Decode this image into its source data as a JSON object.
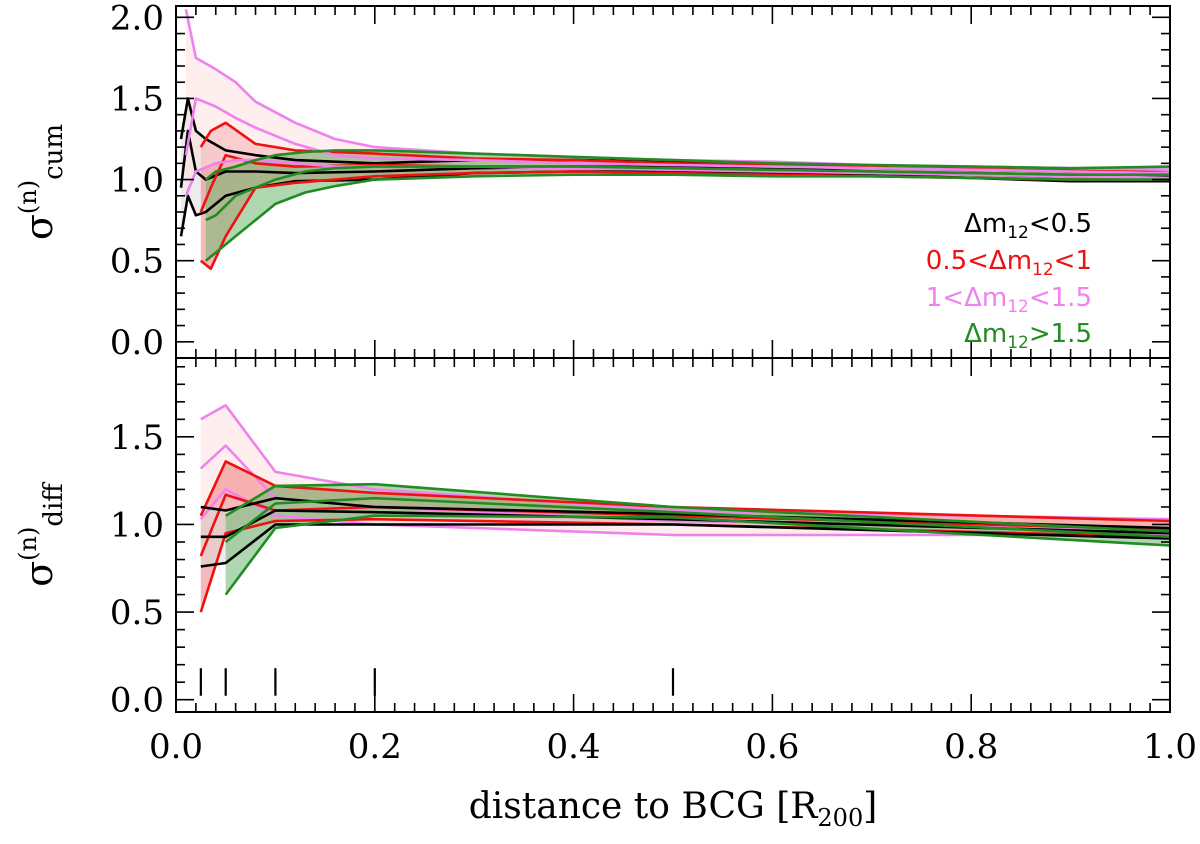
{
  "chart_data": [
    {
      "panel": "top",
      "type": "line",
      "ylabel": {
        "sigma": "σ",
        "sup": "(n)",
        "sub": "cum"
      },
      "xlim": [
        0.0,
        1.0
      ],
      "ylim": [
        -0.1,
        2.07
      ],
      "yticks": [
        0.0,
        0.5,
        1.0,
        1.5,
        2.0
      ],
      "ytick_labels": [
        "0.0",
        "0.5",
        "1.0",
        "1.5",
        "2.0"
      ],
      "legend": {
        "position": "right",
        "entries": [
          {
            "id": "dm-lt-0.5",
            "pre": "Δm",
            "sub": "12",
            "post": "<0.5",
            "color": "#000000"
          },
          {
            "id": "dm-0.5-1",
            "pre": "0.5<Δm",
            "sub": "12",
            "post": "<1",
            "color": "#ee1111"
          },
          {
            "id": "dm-1-1.5",
            "pre": "1<Δm",
            "sub": "12",
            "post": "<1.5",
            "color": "#ee82ee"
          },
          {
            "id": "dm-gt-1.5",
            "pre": "Δm",
            "sub": "12",
            "post": ">1.5",
            "color": "#228b22"
          }
        ]
      },
      "series": [
        {
          "name": "Δm12<0.5",
          "line_color": "#000000",
          "fill_color": "#dcdcdc",
          "x": [
            0.005,
            0.012,
            0.02,
            0.03,
            0.05,
            0.08,
            0.12,
            0.2,
            0.3,
            0.4,
            0.5,
            0.6,
            0.7,
            0.8,
            0.9,
            1.0
          ],
          "mid": [
            0.95,
            1.3,
            1.05,
            1.0,
            1.05,
            1.05,
            1.04,
            1.05,
            1.07,
            1.08,
            1.08,
            1.07,
            1.05,
            1.03,
            1.02,
            1.02
          ],
          "upper": [
            1.25,
            1.5,
            1.3,
            1.25,
            1.18,
            1.15,
            1.12,
            1.1,
            1.12,
            1.12,
            1.11,
            1.09,
            1.07,
            1.06,
            1.05,
            1.06
          ],
          "lower": [
            0.65,
            0.9,
            0.78,
            0.8,
            0.9,
            0.95,
            0.99,
            1.0,
            1.04,
            1.05,
            1.05,
            1.04,
            1.03,
            1.01,
            0.99,
            0.99
          ]
        },
        {
          "name": "0.5<Δm12<1",
          "line_color": "#ee1111",
          "fill_color": "#f08080",
          "x": [
            0.025,
            0.035,
            0.05,
            0.08,
            0.12,
            0.2,
            0.3,
            0.4,
            0.5,
            0.6,
            0.7,
            0.8,
            0.9,
            1.0
          ],
          "mid": [
            0.8,
            0.95,
            1.15,
            1.1,
            1.08,
            1.09,
            1.08,
            1.08,
            1.07,
            1.06,
            1.05,
            1.04,
            1.03,
            1.03
          ],
          "upper": [
            1.2,
            1.3,
            1.35,
            1.22,
            1.18,
            1.16,
            1.13,
            1.12,
            1.1,
            1.09,
            1.08,
            1.07,
            1.06,
            1.06
          ],
          "lower": [
            0.5,
            0.45,
            0.65,
            0.95,
            0.98,
            1.02,
            1.04,
            1.05,
            1.04,
            1.03,
            1.02,
            1.01,
            1.0,
            1.0
          ]
        },
        {
          "name": "1<Δm12<1.5",
          "line_color": "#ee82ee",
          "fill_color": "#fde0e0",
          "x": [
            0.01,
            0.02,
            0.04,
            0.06,
            0.08,
            0.12,
            0.16,
            0.2,
            0.3,
            0.4,
            0.5,
            0.6,
            0.7,
            0.8,
            0.9,
            1.0
          ],
          "mid": [
            1.15,
            1.5,
            1.45,
            1.38,
            1.32,
            1.22,
            1.15,
            1.13,
            1.12,
            1.1,
            1.09,
            1.08,
            1.07,
            1.06,
            1.05,
            1.04
          ],
          "upper": [
            2.05,
            1.75,
            1.68,
            1.6,
            1.48,
            1.35,
            1.25,
            1.2,
            1.16,
            1.14,
            1.12,
            1.11,
            1.09,
            1.08,
            1.07,
            1.06
          ],
          "lower": [
            0.9,
            1.05,
            1.1,
            1.12,
            1.12,
            1.1,
            1.08,
            1.08,
            1.08,
            1.07,
            1.06,
            1.05,
            1.04,
            1.03,
            1.02,
            1.01
          ]
        },
        {
          "name": "Δm12>1.5",
          "line_color": "#228b22",
          "fill_color": "#6fb86f",
          "x": [
            0.03,
            0.04,
            0.06,
            0.08,
            0.1,
            0.13,
            0.16,
            0.2,
            0.3,
            0.4,
            0.5,
            0.6,
            0.7,
            0.8,
            0.9,
            1.0
          ],
          "mid": [
            0.75,
            0.78,
            0.9,
            0.95,
            1.0,
            1.05,
            1.07,
            1.08,
            1.08,
            1.08,
            1.07,
            1.06,
            1.05,
            1.04,
            1.03,
            1.03
          ],
          "upper": [
            1.0,
            1.05,
            1.08,
            1.12,
            1.15,
            1.17,
            1.18,
            1.18,
            1.16,
            1.14,
            1.12,
            1.1,
            1.09,
            1.08,
            1.07,
            1.08
          ],
          "lower": [
            0.5,
            0.55,
            0.65,
            0.75,
            0.85,
            0.92,
            0.96,
            1.0,
            1.02,
            1.03,
            1.03,
            1.02,
            1.02,
            1.01,
            1.0,
            1.0
          ]
        }
      ]
    },
    {
      "panel": "bottom",
      "type": "line",
      "ylabel": {
        "sigma": "σ",
        "sup": "(n)",
        "sub": "diff"
      },
      "xlabel": {
        "main": "distance to BCG [R",
        "sub": "200",
        "end": "]"
      },
      "xlim": [
        0.0,
        1.0
      ],
      "ylim": [
        -0.07,
        1.95
      ],
      "yticks": [
        0.0,
        0.5,
        1.0,
        1.5
      ],
      "ytick_labels": [
        "0.0",
        "0.5",
        "1.0",
        "1.5"
      ],
      "xticks": [
        0.0,
        0.2,
        0.4,
        0.6,
        0.8,
        1.0
      ],
      "xtick_labels": [
        "0.0",
        "0.2",
        "0.4",
        "0.6",
        "0.8",
        "1.0"
      ],
      "bin_edges": [
        0.025,
        0.05,
        0.1,
        0.2,
        0.5
      ],
      "series": [
        {
          "name": "1<Δm12<1.5",
          "line_color": "#ee82ee",
          "fill_color": "#fde0e0",
          "x": [
            0.025,
            0.05,
            0.1,
            0.2,
            0.5,
            1.0
          ],
          "mid": [
            1.32,
            1.45,
            1.15,
            1.1,
            1.02,
            0.97
          ],
          "upper": [
            1.6,
            1.68,
            1.3,
            1.2,
            1.08,
            1.03
          ],
          "lower": [
            1.03,
            1.2,
            1.05,
            1.0,
            0.94,
            0.94
          ]
        },
        {
          "name": "0.5<Δm12<1",
          "line_color": "#ee1111",
          "fill_color": "#f08080",
          "x": [
            0.025,
            0.05,
            0.1,
            0.2,
            0.5,
            1.0
          ],
          "mid": [
            0.82,
            1.17,
            1.08,
            1.1,
            1.05,
            0.97
          ],
          "upper": [
            1.05,
            1.36,
            1.22,
            1.18,
            1.1,
            1.02
          ],
          "lower": [
            0.5,
            0.95,
            1.02,
            1.03,
            1.0,
            0.93
          ]
        },
        {
          "name": "Δm12<0.5",
          "line_color": "#000000",
          "fill_color": "#dcdcdc",
          "x": [
            0.025,
            0.05,
            0.1,
            0.2,
            0.5,
            1.0
          ],
          "mid": [
            0.93,
            0.93,
            1.08,
            1.07,
            1.03,
            0.95
          ],
          "upper": [
            1.1,
            1.08,
            1.15,
            1.1,
            1.06,
            0.98
          ],
          "lower": [
            0.76,
            0.78,
            1.0,
            1.0,
            1.0,
            0.92
          ]
        },
        {
          "name": "Δm12>1.5",
          "line_color": "#228b22",
          "fill_color": "#6fb86f",
          "x": [
            0.05,
            0.1,
            0.2,
            0.5,
            1.0
          ],
          "mid": [
            0.9,
            1.12,
            1.15,
            1.07,
            0.93
          ],
          "upper": [
            1.05,
            1.22,
            1.23,
            1.1,
            0.96
          ],
          "lower": [
            0.6,
            0.98,
            1.05,
            1.04,
            0.88
          ]
        }
      ]
    }
  ]
}
